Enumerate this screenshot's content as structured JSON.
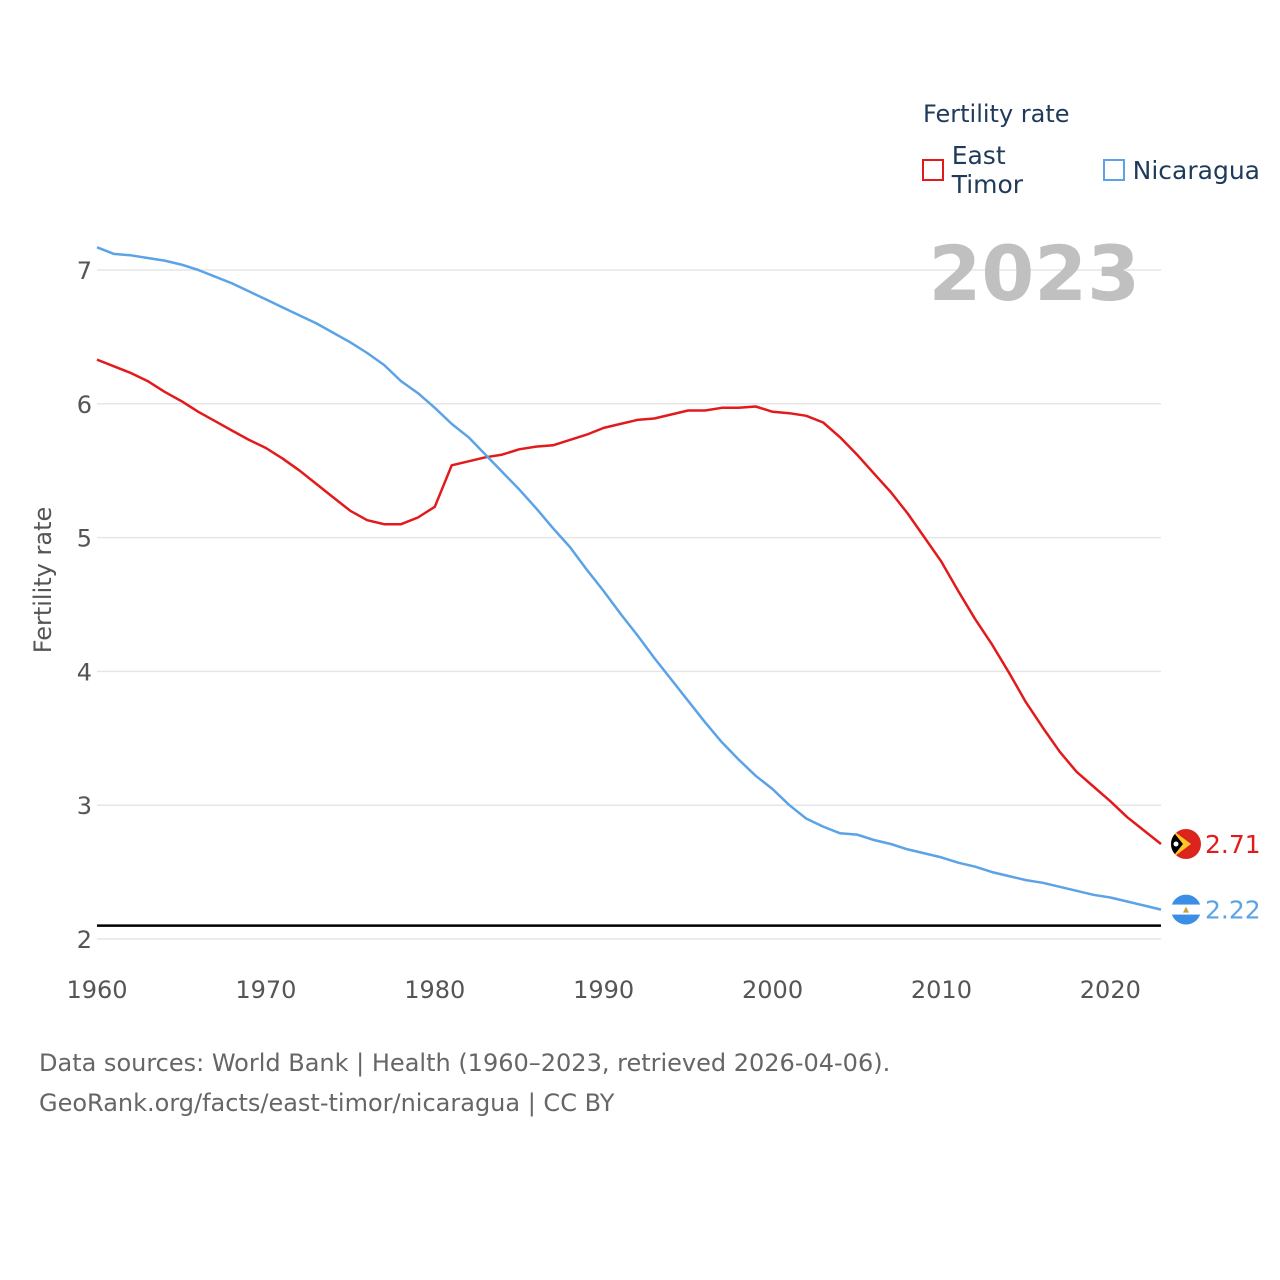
{
  "chart_data": {
    "type": "line",
    "ylabel": "Fertility rate",
    "xlabel": "",
    "year_label": "2023",
    "xlim": [
      1960,
      2023
    ],
    "ylim": [
      2,
      7.2
    ],
    "yticks": [
      2,
      3,
      4,
      5,
      6,
      7
    ],
    "xticks": [
      1960,
      1970,
      1980,
      1990,
      2000,
      2010,
      2020
    ],
    "grid": true,
    "legend": {
      "title": "Fertility rate",
      "position": "top-right"
    },
    "reference_line": {
      "y": 2.1,
      "color": "#000000"
    },
    "x": [
      1960,
      1961,
      1962,
      1963,
      1964,
      1965,
      1966,
      1967,
      1968,
      1969,
      1970,
      1971,
      1972,
      1973,
      1974,
      1975,
      1976,
      1977,
      1978,
      1979,
      1980,
      1981,
      1982,
      1983,
      1984,
      1985,
      1986,
      1987,
      1988,
      1989,
      1990,
      1991,
      1992,
      1993,
      1994,
      1995,
      1996,
      1997,
      1998,
      1999,
      2000,
      2001,
      2002,
      2003,
      2004,
      2005,
      2006,
      2007,
      2008,
      2009,
      2010,
      2011,
      2012,
      2013,
      2014,
      2015,
      2016,
      2017,
      2018,
      2019,
      2020,
      2021,
      2022,
      2023
    ],
    "series": [
      {
        "name": "East Timor",
        "color": "#e31a1c",
        "end_label": "2.71",
        "flag": "east-timor-flag-icon",
        "values": [
          6.33,
          6.28,
          6.23,
          6.17,
          6.09,
          6.02,
          5.94,
          5.87,
          5.8,
          5.73,
          5.67,
          5.59,
          5.5,
          5.4,
          5.3,
          5.2,
          5.13,
          5.1,
          5.1,
          5.15,
          5.23,
          5.54,
          5.57,
          5.6,
          5.62,
          5.66,
          5.68,
          5.69,
          5.73,
          5.77,
          5.82,
          5.85,
          5.88,
          5.89,
          5.92,
          5.95,
          5.95,
          5.97,
          5.97,
          5.98,
          5.94,
          5.93,
          5.91,
          5.86,
          5.75,
          5.62,
          5.48,
          5.34,
          5.18,
          5.0,
          4.82,
          4.6,
          4.39,
          4.2,
          3.99,
          3.77,
          3.58,
          3.4,
          3.25,
          3.14,
          3.03,
          2.91,
          2.81,
          2.71
        ]
      },
      {
        "name": "Nicaragua",
        "color": "#5ba3e6",
        "end_label": "2.22",
        "flag": "nicaragua-flag-icon",
        "values": [
          7.17,
          7.12,
          7.11,
          7.09,
          7.07,
          7.04,
          7.0,
          6.95,
          6.9,
          6.84,
          6.78,
          6.72,
          6.66,
          6.6,
          6.53,
          6.46,
          6.38,
          6.29,
          6.17,
          6.08,
          5.97,
          5.85,
          5.75,
          5.62,
          5.49,
          5.36,
          5.22,
          5.07,
          4.93,
          4.76,
          4.6,
          4.43,
          4.27,
          4.1,
          3.94,
          3.78,
          3.62,
          3.47,
          3.34,
          3.22,
          3.12,
          3.0,
          2.9,
          2.84,
          2.79,
          2.78,
          2.74,
          2.71,
          2.67,
          2.64,
          2.61,
          2.57,
          2.54,
          2.5,
          2.47,
          2.44,
          2.42,
          2.39,
          2.36,
          2.33,
          2.31,
          2.28,
          2.25,
          2.22
        ]
      }
    ]
  },
  "footer": {
    "line1": "Data sources: World Bank | Health (1960–2023, retrieved 2026-04-06).",
    "line2": "GeoRank.org/facts/east-timor/nicaragua | CC BY"
  }
}
